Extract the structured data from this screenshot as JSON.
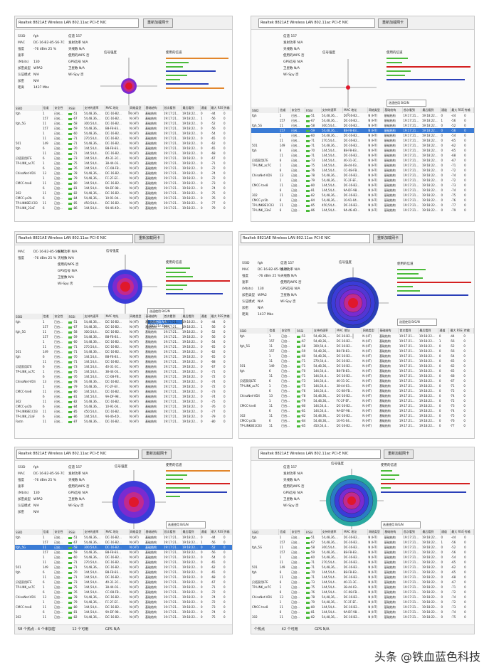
{
  "adapter": {
    "name": "Realtek 8821AE Wireless LAN 802.11ac PCI-E NIC",
    "refresh_label": "重新加载网卡"
  },
  "labels": {
    "signal_strength": "信号强度",
    "speed_used": "使用的信道",
    "speed_select": "选速使用 B/G/N",
    "ssid": "SSID",
    "channel": "信道",
    "txpower": "发射功率",
    "antenna": "天线数",
    "strength": "强度",
    "rate": "速率(Mbits)",
    "wps": "使用的WPS",
    "security": "加密类型",
    "gps": "GPS信号",
    "auth": "认证模式",
    "satellite": "卫星数",
    "cipher": "加密",
    "wigpu": "Wi-Spy",
    "distance": "距离"
  },
  "info_values": {
    "ssid": "fgh",
    "mac": "DC-16-B2-85-56-7C",
    "signal": "-76 dBm   25 %",
    "rate": "130",
    "security": "WPA2",
    "na": "N/A",
    "channel": "157",
    "off": "否",
    "mbs": "1437 Mbs"
  },
  "table_headers": [
    "SSID",
    "信道",
    "安全性",
    "RSSI",
    "支持的速率",
    "MAC 地址",
    "网络类型",
    "基础结构",
    "首次看到",
    "最后看到",
    "通道",
    "最大 RSSI",
    "传输"
  ],
  "rows": [
    [
      "fgh",
      "1",
      "已启...",
      "-51",
      "54,48,36,...",
      "DC-16-B2...",
      "N (HT)",
      "基础结构",
      "19:17:21...",
      "19:18:22...",
      "0",
      "-44",
      "0"
    ],
    [
      "",
      "157",
      "已启...",
      "-67",
      "54,48,36,...",
      "DC-16-B2...",
      "N (HT)",
      "基础结构",
      "19:17:21...",
      "19:18:22...",
      "1",
      "-56",
      "0"
    ],
    [
      "fgh_5G",
      "11",
      "已启...",
      "-58",
      "300,54,4...",
      "DC-16-B2...",
      "N (HT)",
      "基础结构",
      "19:17:21...",
      "19:18:22...",
      "0",
      "-52",
      "0"
    ],
    [
      "",
      "157",
      "已启...",
      "-59",
      "54,48,36,...",
      "B8-F8-83...",
      "N (HT)",
      "基础结构",
      "19:17:21...",
      "19:18:22...",
      "0",
      "-56",
      "0"
    ],
    [
      "",
      "1",
      "已启...",
      "-60",
      "54,48,36,...",
      "DC-16-B2...",
      "N (HT)",
      "基础结构",
      "19:17:21...",
      "19:18:22...",
      "0",
      "-54",
      "0"
    ],
    [
      "",
      "11",
      "已启...",
      "-71",
      "270,54,4...",
      "DC-16-B2...",
      "N (HT)",
      "基础结构",
      "19:17:21...",
      "19:18:22...",
      "0",
      "-65",
      "0"
    ],
    [
      "501",
      "149",
      "已启...",
      "-71",
      "54,48,36,...",
      "DC-16-B2...",
      "N (HT)",
      "基础结构",
      "19:17:21...",
      "19:18:22...",
      "0",
      "-62",
      "0"
    ],
    [
      "fgh",
      "6",
      "已启...",
      "-70",
      "144,54,4...",
      "B8-F8-83...",
      "N (HT)",
      "基础结构",
      "19:17:21...",
      "19:18:22...",
      "0",
      "-65",
      "0"
    ],
    [
      "",
      "11",
      "已启...",
      "-71",
      "144,54,4...",
      "DC-16-B2...",
      "N (HT)",
      "基础结构",
      "19:17:21...",
      "19:18:22...",
      "0",
      "-68",
      "0"
    ],
    [
      "贝塔家用LTE",
      "6",
      "已启...",
      "-73",
      "144,54,4...",
      "40-31-3C...",
      "N (HT)",
      "基础结构",
      "19:17:21...",
      "19:18:22...",
      "0",
      "-67",
      "0"
    ],
    [
      "TP-LINK_ac7C",
      "1",
      "已启...",
      "-75",
      "144,54,4...",
      "38-44-03...",
      "N (HT)",
      "基础结构",
      "19:17:21...",
      "19:18:22...",
      "0",
      "-71",
      "0"
    ],
    [
      "",
      "6",
      "已启...",
      "-76",
      "144,54,4...",
      "CC-08-FB...",
      "N (HT)",
      "基础结构",
      "19:17:21...",
      "19:18:22...",
      "0",
      "-72",
      "0"
    ],
    [
      "ChinaNet-VDIi",
      "13",
      "已启...",
      "-78",
      "54,48,36,...",
      "DC-16-B2...",
      "N (HT)",
      "基础结构",
      "19:17:21...",
      "19:18:22...",
      "0",
      "-74",
      "0"
    ],
    [
      "",
      "1",
      "已启...",
      "-79",
      "54,48,36,...",
      "FC-2F-EF...",
      "N (HT)",
      "基础结构",
      "19:17:21...",
      "19:18:22...",
      "0",
      "-72",
      "0"
    ],
    [
      "CMCC-tne8",
      "11",
      "已启...",
      "-80",
      "144,54,4...",
      "DC-16-B2...",
      "N (HT)",
      "基础结构",
      "19:17:21...",
      "19:18:22...",
      "0",
      "-73",
      "0"
    ],
    [
      "",
      "6",
      "已启...",
      "-81",
      "144,54,4...",
      "9A-DF-98...",
      "N (HT)",
      "基础结构",
      "19:17:21...",
      "19:18:22...",
      "0",
      "-74",
      "0"
    ],
    [
      "302",
      "11",
      "已启...",
      "-82",
      "54,48,36,...",
      "DC-16-B2...",
      "N (HT)",
      "基础结构",
      "19:17:21...",
      "19:18:22...",
      "0",
      "-75",
      "0"
    ],
    [
      "CMCC-pr2b",
      "6",
      "已启...",
      "-84",
      "54,48,36,...",
      "10-91-04...",
      "N (HT)",
      "基础结构",
      "19:17:21...",
      "19:18:22...",
      "0",
      "-76",
      "0"
    ],
    [
      "TP-LINK8E1C03",
      "11",
      "已启...",
      "-85",
      "450,54,4...",
      "DC-16-B2...",
      "N (HT)",
      "基础结构",
      "19:17:21...",
      "19:18:22...",
      "0",
      "-77",
      "0"
    ],
    [
      "TP-LINK_23aF",
      "6",
      "已启...",
      "-86",
      "144,54,4...",
      "94-46-4D...",
      "N (HT)",
      "基础结构",
      "19:17:21...",
      "19:18:22...",
      "0",
      "-79",
      "0"
    ],
    [
      "Fastn",
      "11",
      "已启...",
      "-87",
      "54,48,36,...",
      "DC-16-B2...",
      "N (HT)",
      "基础结构",
      "19:17:21...",
      "19:18:22...",
      "0",
      "-80",
      "0"
    ],
    [
      "802",
      "1",
      "已启...",
      "-88",
      "54,48,36,...",
      "B8-F8-83...",
      "N (HT)",
      "基础结构",
      "19:17:21...",
      "19:18:22...",
      "0",
      "-81",
      "0"
    ]
  ],
  "speed_options": [
    "选速使用 B/G/N",
    "选速使用 B/G/N",
    "选速使用 A/N",
    "802.11n Data"
  ],
  "status": {
    "ap_count": "58 个热点 - 4 个未加密",
    "connected": "12 个可用",
    "gps": "GPS N/A",
    "ap_count2": "个热点",
    "connected2": "42 个可用"
  },
  "watermark": "头条 @铁血蓝色科技",
  "colors": {
    "green": "#4bbb3a",
    "blue": "#2a3fb8",
    "orange": "#e2862b",
    "red": "#d42020",
    "violet": "#8a3cc7"
  }
}
